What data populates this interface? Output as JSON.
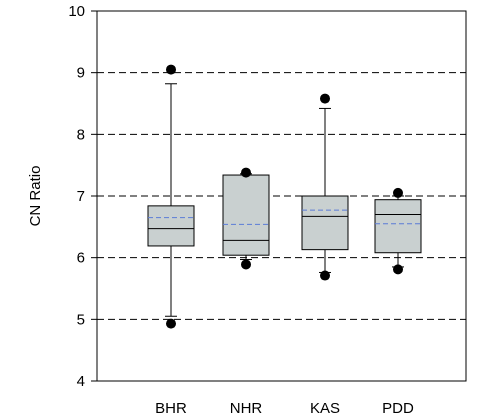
{
  "chart_data": {
    "type": "box",
    "title": "",
    "xlabel": "",
    "ylabel": "CN  Ratio",
    "ylim": [
      4,
      10
    ],
    "yticks": [
      4,
      5,
      6,
      7,
      8,
      9,
      10
    ],
    "grid": "horizontal dashed at 5, 6, 7, 8, 9",
    "colors": {
      "box_fill": "#c9d0d0",
      "box_stroke": "#000000",
      "median": "#000000",
      "mean": "#5b7bd6",
      "gridline": "#000000",
      "outlier": "#000000"
    },
    "categories": [
      "BHR",
      "NHR",
      "KAS",
      "PDD"
    ],
    "boxes": [
      {
        "category": "BHR",
        "whisker_low": 5.05,
        "q1": 6.19,
        "median": 6.47,
        "mean": 6.65,
        "q3": 6.84,
        "whisker_high": 8.82,
        "outliers": [
          9.05,
          4.93
        ]
      },
      {
        "category": "NHR",
        "whisker_low": 5.97,
        "q1": 6.04,
        "median": 6.28,
        "mean": 6.54,
        "q3": 7.34,
        "whisker_high": 7.36,
        "outliers": [
          7.38,
          5.89
        ]
      },
      {
        "category": "KAS",
        "whisker_low": 5.76,
        "q1": 6.13,
        "median": 6.67,
        "mean": 6.77,
        "q3": 7.0,
        "whisker_high": 8.42,
        "outliers": [
          8.58,
          5.71
        ]
      },
      {
        "category": "PDD",
        "whisker_low": 5.85,
        "q1": 6.08,
        "median": 6.7,
        "mean": 6.55,
        "q3": 6.94,
        "whisker_high": 7.0,
        "outliers": [
          7.05,
          5.81
        ]
      }
    ]
  }
}
